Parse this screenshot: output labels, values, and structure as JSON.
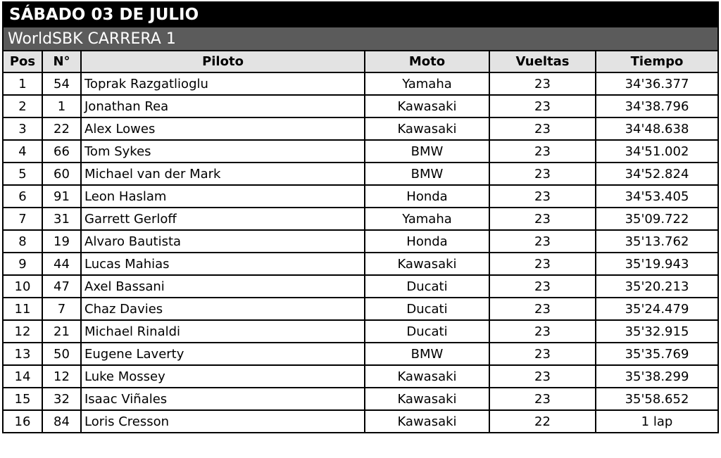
{
  "title": "SÁBADO 03 DE JULIO",
  "subtitle": "WorldSBK CARRERA 1",
  "columns": [
    "Pos",
    "N°",
    "Piloto",
    "Moto",
    "Vueltas",
    "Tiempo"
  ],
  "rows": [
    [
      "1",
      "54",
      "Toprak Razgatlioglu",
      "Yamaha",
      "23",
      "34'36.377"
    ],
    [
      "2",
      "1",
      "Jonathan Rea",
      "Kawasaki",
      "23",
      "34'38.796"
    ],
    [
      "3",
      "22",
      "Alex Lowes",
      "Kawasaki",
      "23",
      "34'48.638"
    ],
    [
      "4",
      "66",
      "Tom Sykes",
      "BMW",
      "23",
      "34'51.002"
    ],
    [
      "5",
      "60",
      "Michael van der Mark",
      "BMW",
      "23",
      "34'52.824"
    ],
    [
      "6",
      "91",
      "Leon Haslam",
      "Honda",
      "23",
      "34'53.405"
    ],
    [
      "7",
      "31",
      "Garrett Gerloff",
      "Yamaha",
      "23",
      "35'09.722"
    ],
    [
      "8",
      "19",
      "Alvaro Bautista",
      "Honda",
      "23",
      "35'13.762"
    ],
    [
      "9",
      "44",
      "Lucas Mahias",
      "Kawasaki",
      "23",
      "35'19.943"
    ],
    [
      "10",
      "47",
      "Axel Bassani",
      "Ducati",
      "23",
      "35'20.213"
    ],
    [
      "11",
      "7",
      "Chaz Davies",
      "Ducati",
      "23",
      "35'24.479"
    ],
    [
      "12",
      "21",
      "Michael Rinaldi",
      "Ducati",
      "23",
      "35'32.915"
    ],
    [
      "13",
      "50",
      "Eugene Laverty",
      "BMW",
      "23",
      "35'35.769"
    ],
    [
      "14",
      "12",
      "Luke Mossey",
      "Kawasaki",
      "23",
      "35'38.299"
    ],
    [
      "15",
      "32",
      "Isaac Viñales",
      "Kawasaki",
      "23",
      "35'58.652"
    ],
    [
      "16",
      "84",
      "Loris Cresson",
      "Kawasaki",
      "22",
      "1 lap"
    ]
  ]
}
